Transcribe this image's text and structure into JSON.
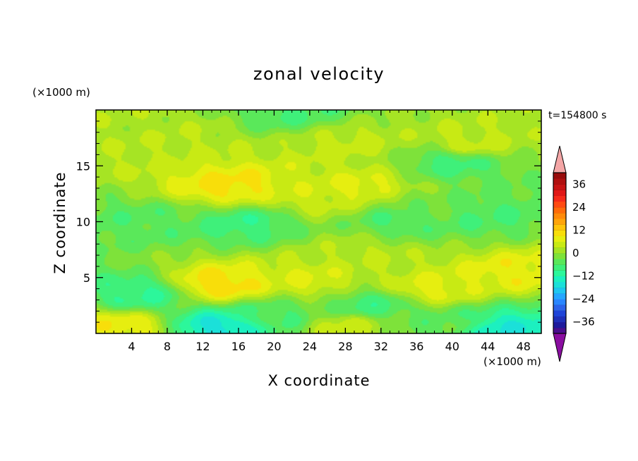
{
  "chart_data": {
    "type": "heatmap",
    "title": "zonal velocity",
    "xlabel": "X coordinate",
    "ylabel": "Z coordinate",
    "x_units": "(×1000 m)",
    "y_units": "(×1000 m)",
    "time_label": "t=154800 s",
    "xlim": [
      0,
      50
    ],
    "ylim": [
      0,
      20
    ],
    "x_ticks": [
      4,
      8,
      12,
      16,
      20,
      24,
      28,
      32,
      36,
      40,
      44,
      48
    ],
    "y_ticks": [
      5,
      10,
      15
    ],
    "colorbar": {
      "levels": [
        -42,
        -39,
        -36,
        -33,
        -30,
        -27,
        -24,
        -21,
        -18,
        -15,
        -12,
        -9,
        -6,
        -3,
        0,
        3,
        6,
        9,
        12,
        15,
        18,
        21,
        24,
        27,
        30,
        33,
        36,
        39,
        42
      ],
      "labels": [
        36,
        24,
        12,
        0,
        -12,
        -24,
        -36
      ],
      "colors_low_to_high": [
        "#4a0e8e",
        "#1e1a9c",
        "#1f2fb8",
        "#1f44d8",
        "#2d63ea",
        "#2a86ff",
        "#25a6ff",
        "#1ec7f0",
        "#1be0d9",
        "#1cf0c0",
        "#2cf79b",
        "#3ff07a",
        "#5ae85a",
        "#7ee23a",
        "#a6e424",
        "#c8ea14",
        "#e6ee10",
        "#f8de0a",
        "#ffc40a",
        "#ffa40a",
        "#ff8a0a",
        "#ff6a0a",
        "#ff4a12",
        "#f52a1a",
        "#e01818",
        "#c81414",
        "#b01010",
        "#980c0c"
      ],
      "over_color": "#f4a6a6",
      "under_color": "#8a0ea0"
    },
    "features": [
      {
        "x": 30,
        "y": 13.0,
        "value": 7
      },
      {
        "x": 15,
        "y": 13.2,
        "value": 10
      },
      {
        "x": 25,
        "y": 12.2,
        "value": 5
      },
      {
        "x": 36,
        "y": 11.5,
        "value": -2
      },
      {
        "x": 17,
        "y": 9.8,
        "value": -8
      },
      {
        "x": 34,
        "y": 10.2,
        "value": -6
      },
      {
        "x": 44,
        "y": 10.5,
        "value": -6
      },
      {
        "x": 5,
        "y": 10.0,
        "value": -5
      },
      {
        "x": 14,
        "y": 4.4,
        "value": 11
      },
      {
        "x": 47,
        "y": 5.5,
        "value": 8
      },
      {
        "x": 38,
        "y": 4.0,
        "value": 7
      },
      {
        "x": 24,
        "y": 4.8,
        "value": 6
      },
      {
        "x": 30,
        "y": 7.0,
        "value": 3
      },
      {
        "x": 5,
        "y": 3.5,
        "value": -9
      },
      {
        "x": 14,
        "y": 0.6,
        "value": -16
      },
      {
        "x": 45.5,
        "y": 0.5,
        "value": -15
      },
      {
        "x": 31,
        "y": 2.5,
        "value": -7
      },
      {
        "x": 20,
        "y": 1.5,
        "value": -6
      },
      {
        "x": 3,
        "y": 0.6,
        "value": 8
      },
      {
        "x": 28,
        "y": 0.6,
        "value": 4
      },
      {
        "x": 40,
        "y": 1.0,
        "value": -4
      },
      {
        "x": 42,
        "y": 17.0,
        "value": 4
      },
      {
        "x": 28,
        "y": 17.0,
        "value": 4
      },
      {
        "x": 8,
        "y": 17.0,
        "value": 3
      },
      {
        "x": 22,
        "y": 19.8,
        "value": -6
      },
      {
        "x": 40,
        "y": 15.3,
        "value": -7
      },
      {
        "x": 5,
        "y": 18.5,
        "value": 2
      }
    ]
  }
}
